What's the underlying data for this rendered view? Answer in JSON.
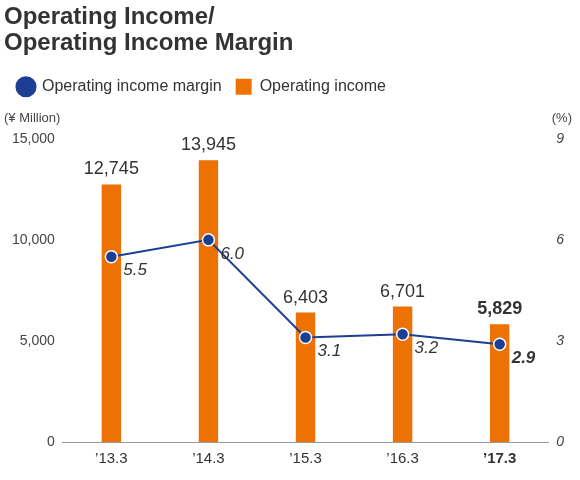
{
  "chart_data": {
    "type": "bar",
    "title": [
      "Operating Income/",
      "Operating Income Margin"
    ],
    "categories": [
      "’13.3",
      "’14.3",
      "’15.3",
      "’16.3",
      "’17.3"
    ],
    "series": [
      {
        "name": "Operating income",
        "type": "bar",
        "color": "#ee7203",
        "values": [
          12745,
          13945,
          6403,
          6701,
          5829
        ],
        "value_labels": [
          "12,745",
          "13,945",
          "6,403",
          "6,701",
          "5,829"
        ]
      },
      {
        "name": "Operating income margin",
        "type": "line",
        "axis": "y2",
        "color": "#1c3f94",
        "marker": "circle",
        "values": [
          5.5,
          6.0,
          3.1,
          3.2,
          2.9
        ],
        "value_labels": [
          "5.5",
          "6.0",
          "3.1",
          "3.2",
          "2.9"
        ]
      }
    ],
    "ylabel": "(¥ Million)",
    "y2label": "(%)",
    "ylim": [
      0,
      15000
    ],
    "yticks": [
      0,
      {
        "value": 5000,
        "label": "5,000"
      },
      {
        "value": 10000,
        "label": "10,000"
      },
      {
        "value": 15000,
        "label": "15,000"
      }
    ],
    "y2lim": [
      0,
      9
    ],
    "y2ticks": [
      0,
      3,
      6,
      9
    ],
    "grid": false,
    "legend": "top left",
    "data_labels": true
  }
}
